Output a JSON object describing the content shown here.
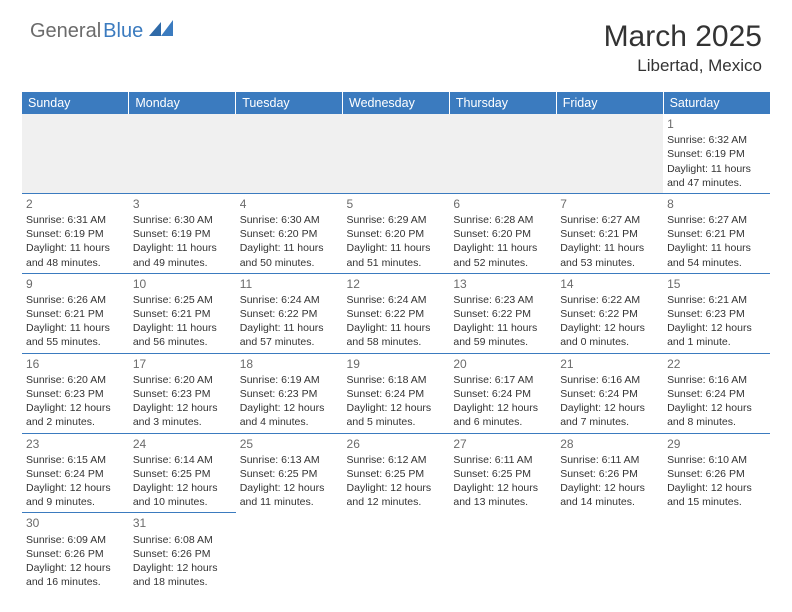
{
  "logo": {
    "part1": "General",
    "part2": "Blue"
  },
  "title": "March 2025",
  "location": "Libertad, Mexico",
  "colors": {
    "header_bg": "#3b7bbf",
    "header_text": "#ffffff",
    "daynum": "#6b6b6b",
    "body_text": "#333333",
    "border": "#3b7bbf",
    "empty_bg": "#f0f0f0"
  },
  "weekdays": [
    "Sunday",
    "Monday",
    "Tuesday",
    "Wednesday",
    "Thursday",
    "Friday",
    "Saturday"
  ],
  "weeks": [
    [
      null,
      null,
      null,
      null,
      null,
      null,
      {
        "d": "1",
        "sr": "Sunrise: 6:32 AM",
        "ss": "Sunset: 6:19 PM",
        "dl1": "Daylight: 11 hours",
        "dl2": "and 47 minutes."
      }
    ],
    [
      {
        "d": "2",
        "sr": "Sunrise: 6:31 AM",
        "ss": "Sunset: 6:19 PM",
        "dl1": "Daylight: 11 hours",
        "dl2": "and 48 minutes."
      },
      {
        "d": "3",
        "sr": "Sunrise: 6:30 AM",
        "ss": "Sunset: 6:19 PM",
        "dl1": "Daylight: 11 hours",
        "dl2": "and 49 minutes."
      },
      {
        "d": "4",
        "sr": "Sunrise: 6:30 AM",
        "ss": "Sunset: 6:20 PM",
        "dl1": "Daylight: 11 hours",
        "dl2": "and 50 minutes."
      },
      {
        "d": "5",
        "sr": "Sunrise: 6:29 AM",
        "ss": "Sunset: 6:20 PM",
        "dl1": "Daylight: 11 hours",
        "dl2": "and 51 minutes."
      },
      {
        "d": "6",
        "sr": "Sunrise: 6:28 AM",
        "ss": "Sunset: 6:20 PM",
        "dl1": "Daylight: 11 hours",
        "dl2": "and 52 minutes."
      },
      {
        "d": "7",
        "sr": "Sunrise: 6:27 AM",
        "ss": "Sunset: 6:21 PM",
        "dl1": "Daylight: 11 hours",
        "dl2": "and 53 minutes."
      },
      {
        "d": "8",
        "sr": "Sunrise: 6:27 AM",
        "ss": "Sunset: 6:21 PM",
        "dl1": "Daylight: 11 hours",
        "dl2": "and 54 minutes."
      }
    ],
    [
      {
        "d": "9",
        "sr": "Sunrise: 6:26 AM",
        "ss": "Sunset: 6:21 PM",
        "dl1": "Daylight: 11 hours",
        "dl2": "and 55 minutes."
      },
      {
        "d": "10",
        "sr": "Sunrise: 6:25 AM",
        "ss": "Sunset: 6:21 PM",
        "dl1": "Daylight: 11 hours",
        "dl2": "and 56 minutes."
      },
      {
        "d": "11",
        "sr": "Sunrise: 6:24 AM",
        "ss": "Sunset: 6:22 PM",
        "dl1": "Daylight: 11 hours",
        "dl2": "and 57 minutes."
      },
      {
        "d": "12",
        "sr": "Sunrise: 6:24 AM",
        "ss": "Sunset: 6:22 PM",
        "dl1": "Daylight: 11 hours",
        "dl2": "and 58 minutes."
      },
      {
        "d": "13",
        "sr": "Sunrise: 6:23 AM",
        "ss": "Sunset: 6:22 PM",
        "dl1": "Daylight: 11 hours",
        "dl2": "and 59 minutes."
      },
      {
        "d": "14",
        "sr": "Sunrise: 6:22 AM",
        "ss": "Sunset: 6:22 PM",
        "dl1": "Daylight: 12 hours",
        "dl2": "and 0 minutes."
      },
      {
        "d": "15",
        "sr": "Sunrise: 6:21 AM",
        "ss": "Sunset: 6:23 PM",
        "dl1": "Daylight: 12 hours",
        "dl2": "and 1 minute."
      }
    ],
    [
      {
        "d": "16",
        "sr": "Sunrise: 6:20 AM",
        "ss": "Sunset: 6:23 PM",
        "dl1": "Daylight: 12 hours",
        "dl2": "and 2 minutes."
      },
      {
        "d": "17",
        "sr": "Sunrise: 6:20 AM",
        "ss": "Sunset: 6:23 PM",
        "dl1": "Daylight: 12 hours",
        "dl2": "and 3 minutes."
      },
      {
        "d": "18",
        "sr": "Sunrise: 6:19 AM",
        "ss": "Sunset: 6:23 PM",
        "dl1": "Daylight: 12 hours",
        "dl2": "and 4 minutes."
      },
      {
        "d": "19",
        "sr": "Sunrise: 6:18 AM",
        "ss": "Sunset: 6:24 PM",
        "dl1": "Daylight: 12 hours",
        "dl2": "and 5 minutes."
      },
      {
        "d": "20",
        "sr": "Sunrise: 6:17 AM",
        "ss": "Sunset: 6:24 PM",
        "dl1": "Daylight: 12 hours",
        "dl2": "and 6 minutes."
      },
      {
        "d": "21",
        "sr": "Sunrise: 6:16 AM",
        "ss": "Sunset: 6:24 PM",
        "dl1": "Daylight: 12 hours",
        "dl2": "and 7 minutes."
      },
      {
        "d": "22",
        "sr": "Sunrise: 6:16 AM",
        "ss": "Sunset: 6:24 PM",
        "dl1": "Daylight: 12 hours",
        "dl2": "and 8 minutes."
      }
    ],
    [
      {
        "d": "23",
        "sr": "Sunrise: 6:15 AM",
        "ss": "Sunset: 6:24 PM",
        "dl1": "Daylight: 12 hours",
        "dl2": "and 9 minutes."
      },
      {
        "d": "24",
        "sr": "Sunrise: 6:14 AM",
        "ss": "Sunset: 6:25 PM",
        "dl1": "Daylight: 12 hours",
        "dl2": "and 10 minutes."
      },
      {
        "d": "25",
        "sr": "Sunrise: 6:13 AM",
        "ss": "Sunset: 6:25 PM",
        "dl1": "Daylight: 12 hours",
        "dl2": "and 11 minutes."
      },
      {
        "d": "26",
        "sr": "Sunrise: 6:12 AM",
        "ss": "Sunset: 6:25 PM",
        "dl1": "Daylight: 12 hours",
        "dl2": "and 12 minutes."
      },
      {
        "d": "27",
        "sr": "Sunrise: 6:11 AM",
        "ss": "Sunset: 6:25 PM",
        "dl1": "Daylight: 12 hours",
        "dl2": "and 13 minutes."
      },
      {
        "d": "28",
        "sr": "Sunrise: 6:11 AM",
        "ss": "Sunset: 6:26 PM",
        "dl1": "Daylight: 12 hours",
        "dl2": "and 14 minutes."
      },
      {
        "d": "29",
        "sr": "Sunrise: 6:10 AM",
        "ss": "Sunset: 6:26 PM",
        "dl1": "Daylight: 12 hours",
        "dl2": "and 15 minutes."
      }
    ],
    [
      {
        "d": "30",
        "sr": "Sunrise: 6:09 AM",
        "ss": "Sunset: 6:26 PM",
        "dl1": "Daylight: 12 hours",
        "dl2": "and 16 minutes."
      },
      {
        "d": "31",
        "sr": "Sunrise: 6:08 AM",
        "ss": "Sunset: 6:26 PM",
        "dl1": "Daylight: 12 hours",
        "dl2": "and 18 minutes."
      },
      null,
      null,
      null,
      null,
      null
    ]
  ]
}
